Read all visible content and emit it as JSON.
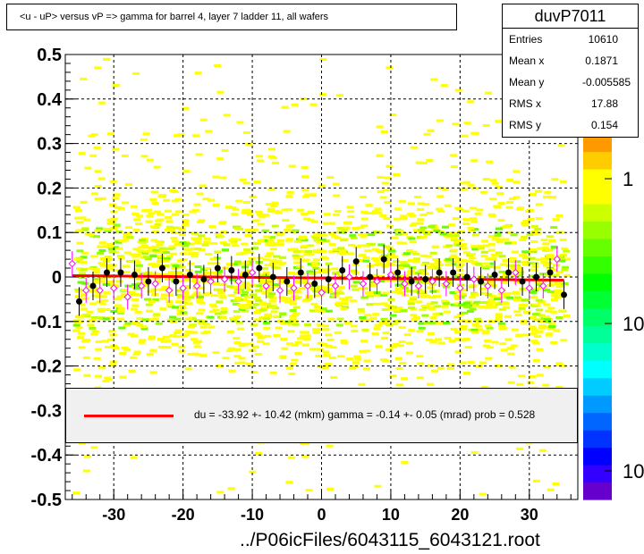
{
  "title": "<u - uP>       versus   vP =>  gamma for barrel 4, layer 7 ladder 11, all wafers",
  "stats": {
    "name": "duvP7011",
    "entries_label": "Entries",
    "entries": "10610",
    "mean_x_label": "Mean x",
    "mean_x": "0.1871",
    "mean_y_label": "Mean y",
    "mean_y": "-0.005585",
    "rms_x_label": "RMS x",
    "rms_x": "17.88",
    "rms_y_label": "RMS y",
    "rms_y": "0.154"
  },
  "fit_legend": "du =  -33.92 +- 10.42 (mkm) gamma =   -0.14 +-  0.05 (mrad) prob = 0.528",
  "x_axis_title": "../P06icFiles/6043115_6043121.root",
  "colors": {
    "fit_line": "#ff0000",
    "profile_marker": "#000000",
    "open_marker": "#ff00ff",
    "density_low": "#ffff00",
    "density_mid": "#00ff00",
    "density_high": "#0000ff"
  },
  "chart_data": {
    "type": "heatmap",
    "xlim": [
      -37,
      37
    ],
    "ylim": [
      -0.5,
      0.5
    ],
    "grid": true,
    "log_z": true,
    "y_ticks": [
      "0.5",
      "0.4",
      "0.3",
      "0.2",
      "0.1",
      "0",
      "-0.1",
      "-0.2",
      "-0.3",
      "-0.4",
      "-0.5"
    ],
    "x_ticks": [
      "-30",
      "-20",
      "-10",
      "0",
      "10",
      "20",
      "30"
    ],
    "z_tick_labels": [
      "1",
      "10",
      "10"
    ],
    "fit_line": {
      "x": [
        -36,
        35
      ],
      "y": [
        0.003,
        -0.007
      ]
    },
    "profile": {
      "x": [
        -35,
        -33,
        -31,
        -29,
        -27,
        -25,
        -23,
        -21,
        -19,
        -17,
        -15,
        -13,
        -11,
        -9,
        -7,
        -5,
        -3,
        -1,
        1,
        3,
        5,
        7,
        9,
        11,
        13,
        15,
        17,
        19,
        21,
        23,
        25,
        27,
        29,
        31,
        33,
        35
      ],
      "y": [
        -0.055,
        -0.02,
        0.01,
        0.01,
        0.005,
        -0.01,
        0.02,
        -0.01,
        0.005,
        -0.005,
        0.02,
        0.015,
        0.005,
        0.02,
        0,
        -0.01,
        0.01,
        -0.015,
        -0.005,
        0.015,
        0.035,
        0,
        0.04,
        0.01,
        -0.01,
        -0.005,
        0.01,
        0.01,
        0,
        -0.01,
        0.005,
        0.01,
        -0.01,
        0,
        0.01,
        -0.04
      ]
    },
    "points_open": {
      "x": [
        -36,
        -34,
        -32,
        -30,
        -28,
        -26,
        -24,
        -22,
        -20,
        -18,
        -16,
        -14,
        -12,
        -10,
        -8,
        -6,
        -4,
        -2,
        0,
        2,
        4,
        6,
        8,
        10,
        12,
        14,
        16,
        18,
        20,
        22,
        24,
        26,
        28,
        30,
        32,
        34
      ],
      "y": [
        0.03,
        -0.03,
        -0.03,
        -0.025,
        -0.045,
        -0.02,
        -0.015,
        -0.03,
        -0.025,
        -0.02,
        -0.01,
        -0.005,
        -0.01,
        0.01,
        -0.02,
        -0.03,
        -0.025,
        -0.02,
        -0.035,
        -0.02,
        0.0,
        -0.015,
        -0.01,
        0.005,
        -0.015,
        -0.02,
        -0.01,
        -0.015,
        -0.025,
        -0.005,
        -0.02,
        -0.03,
        0.01,
        -0.025,
        -0.02,
        0.04
      ]
    }
  }
}
